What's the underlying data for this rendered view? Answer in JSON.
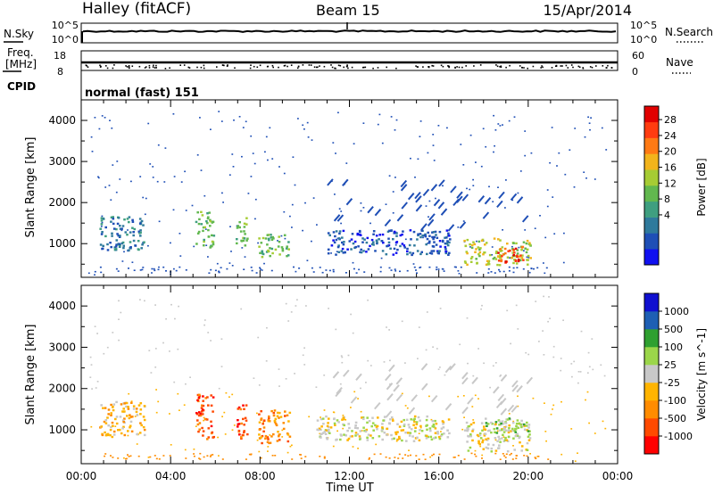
{
  "header": {
    "station": "Halley (fitACF)",
    "beam": "Beam 15",
    "date": "15/Apr/2014"
  },
  "strip_panels": {
    "nsky_label": "N.Sky",
    "nsearch_label": "N.Search",
    "freq_label_line1": "Freq.",
    "freq_label_line2": "[MHz]",
    "nave_label": "Nave",
    "cpid_label": "CPID",
    "cpid_value": "normal (fast) 151",
    "noise_ticks": [
      "10^5",
      "10^0"
    ],
    "freq_ticks": [
      "18",
      "8"
    ],
    "nave_ticks": [
      "60",
      "0"
    ]
  },
  "chart_data": [
    {
      "type": "heatmap",
      "title": "",
      "xlabel": "",
      "ylabel": "Slant Range [km]",
      "x_ticks": [
        "00:00",
        "04:00",
        "08:00",
        "12:00",
        "16:00",
        "20:00",
        "00:00"
      ],
      "y_ticks": [
        1000,
        2000,
        3000,
        4000
      ],
      "ylim": [
        180,
        4500
      ],
      "colorbar": {
        "label": "Power [dB]",
        "ticks": [
          "28",
          "24",
          "20",
          "16",
          "12",
          "8",
          "4"
        ],
        "colors": [
          "#1010f0",
          "#1f4fb6",
          "#2f7a9c",
          "#3f9f80",
          "#62b84f",
          "#a6cc34",
          "#f2b41c",
          "#ff7a14",
          "#ff3c10",
          "#e10000"
        ]
      },
      "blobs": [
        {
          "t_start": 0.8,
          "t_end": 2.8,
          "r_min": 850,
          "r_max": 1700,
          "level": 2
        },
        {
          "t_start": 5.1,
          "t_end": 5.9,
          "r_min": 900,
          "r_max": 1800,
          "level": 4
        },
        {
          "t_start": 6.9,
          "t_end": 7.4,
          "r_min": 900,
          "r_max": 1650,
          "level": 4
        },
        {
          "t_start": 7.9,
          "t_end": 9.3,
          "r_min": 700,
          "r_max": 1250,
          "level": 4
        },
        {
          "t_start": 17.1,
          "t_end": 20.1,
          "r_min": 500,
          "r_max": 1150,
          "level": 5
        },
        {
          "t_start": 18.6,
          "t_end": 19.9,
          "r_min": 550,
          "r_max": 950,
          "level": 8
        },
        {
          "t_start": 11.0,
          "t_end": 16.5,
          "r_min": 750,
          "r_max": 1350,
          "level": 1
        }
      ]
    },
    {
      "type": "heatmap",
      "title": "",
      "xlabel": "Time UT",
      "ylabel": "Slant Range [km]",
      "x_ticks": [
        "00:00",
        "04:00",
        "08:00",
        "12:00",
        "16:00",
        "20:00",
        "00:00"
      ],
      "y_ticks": [
        1000,
        2000,
        3000,
        4000
      ],
      "ylim": [
        180,
        4500
      ],
      "colorbar": {
        "label": "Velocity [m s^-1]",
        "ticks": [
          "1000",
          "500",
          "100",
          "25",
          "-25",
          "-100",
          "-500",
          "-1000"
        ],
        "colors": [
          "#ff0000",
          "#ff4a00",
          "#ff8c00",
          "#ffb400",
          "#c8c8c8",
          "#9bd64a",
          "#2fa030",
          "#1e5fb4",
          "#1010d0"
        ]
      },
      "blobs": [
        {
          "t_start": 0.8,
          "t_end": 2.8,
          "r_min": 850,
          "r_max": 1700,
          "level": 3
        },
        {
          "t_start": 5.1,
          "t_end": 5.9,
          "r_min": 800,
          "r_max": 1900,
          "level": 1
        },
        {
          "t_start": 6.9,
          "t_end": 7.4,
          "r_min": 800,
          "r_max": 1700,
          "level": 1
        },
        {
          "t_start": 7.9,
          "t_end": 9.3,
          "r_min": 700,
          "r_max": 1500,
          "level": 2
        },
        {
          "t_start": 10.5,
          "t_end": 16.5,
          "r_min": 750,
          "r_max": 1350,
          "level": 4
        },
        {
          "t_start": 17.1,
          "t_end": 20.1,
          "r_min": 500,
          "r_max": 1200,
          "level": 4
        },
        {
          "t_start": 18.0,
          "t_end": 20.1,
          "r_min": 950,
          "r_max": 1300,
          "level": 5
        }
      ]
    }
  ]
}
